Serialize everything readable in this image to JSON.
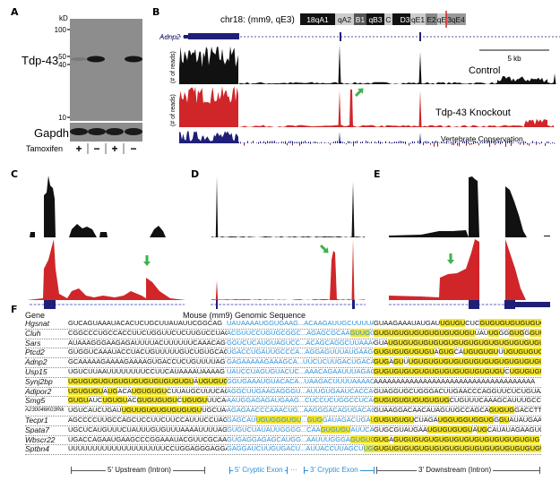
{
  "panels": {
    "a": "A",
    "b": "B",
    "c": "C",
    "d": "D",
    "e": "E",
    "f": "F"
  },
  "panel_a": {
    "unit": "kD",
    "markers": [
      "100",
      "50",
      "40",
      "10"
    ],
    "protein": "Tdp-43",
    "loading_control": "Gapdh",
    "treatment": "Tamoxifen",
    "lanes": [
      "+",
      "−",
      "+",
      "−"
    ]
  },
  "panel_b": {
    "location": "chr18: (mm9, qE3)",
    "ideogram_bands": [
      "18qA1",
      "qA2",
      "B1",
      "qB3",
      "C",
      "D3",
      "qE1",
      "E2",
      "qE",
      "3qE4"
    ],
    "gene": "Adnp2",
    "scale_bar": "5 kb",
    "y_label": "(# of reads)",
    "tracks": [
      "Control",
      "Tdp-43 Knockout",
      "Vertebrate Conservation"
    ]
  },
  "colors": {
    "control": "#111111",
    "knockout": "#d0262a",
    "gene": "#1f1f78",
    "arrow": "#3cb44a",
    "highlight": "#f2e531",
    "exon_text": "#2b8fd6"
  },
  "panel_f": {
    "gene_header": "Gene",
    "sequence_header": "Mouse (mm9) Genomic Sequence",
    "regions": [
      "5' Upstream (Intron)",
      "5' Cryptic Exon",
      "···",
      "3' Cryptic Exon",
      "3' Downstream (Intron)"
    ],
    "rows": [
      {
        "gene": "Hgsnat",
        "up": [
          [
            "GUCAGUAAAUACACUCUGCUUAUAUUCGGCAG",
            0
          ]
        ],
        "ex": [
          [
            "UAUAAAAUGGUGAAG...ACAAGAUUGCUUUUA",
            0
          ]
        ],
        "dn": [
          [
            "GUAAGAAAUAUGAU",
            0
          ],
          [
            "UGUGU",
            1
          ],
          [
            "CUC",
            0
          ],
          [
            "GUGUGUGUGUGUG",
            1
          ]
        ]
      },
      {
        "gene": "Cluh",
        "up": [
          [
            "CGGCCCUGCCACCUUCUGGUUCUCUUGUCCUAG",
            0
          ]
        ],
        "ex": [
          [
            "ACGUUCCUGUGCGGC...AGAGCGCAA",
            0
          ],
          [
            "GUUG",
            1
          ],
          [
            "GG",
            0
          ]
        ],
        "dn": [
          [
            "GUGUGUGUGUGUGUGUGUGU",
            1
          ],
          [
            "UAU",
            0
          ],
          [
            "UG",
            1
          ],
          [
            "GG",
            0
          ],
          [
            "GUG",
            1
          ],
          [
            "G",
            0
          ],
          [
            "GUUG",
            1
          ],
          [
            "UC",
            0
          ]
        ]
      },
      {
        "gene": "Sars",
        "up": [
          [
            "AUAAAGGGAAGAGAUUUUACUUUUUUCAAACAG",
            0
          ]
        ],
        "ex": [
          [
            "GGUCUCAUGUAGUCC...ACAGCAGGCUUAAAGG",
            0
          ]
        ],
        "dn": [
          [
            "GUA",
            0
          ],
          [
            "UGUGUGUGUGUGUGUGUGUGUGUGUGUGUGU",
            1
          ],
          [
            "U",
            0
          ]
        ]
      },
      {
        "gene": "Ptcd2",
        "up": [
          [
            "GUGGUCAAAUACCUACUGUUUUUGUCUGUGCAG",
            0
          ]
        ],
        "ex": [
          [
            "UGACCUGAUUGCCCA...AGGAGUUUAUGAAGG",
            0
          ]
        ],
        "dn": [
          [
            "GUGUGUGUGUGU",
            1
          ],
          [
            "A",
            0
          ],
          [
            "GUG",
            1
          ],
          [
            "CA",
            0
          ],
          [
            "UGUGUGU",
            1
          ],
          [
            "U",
            0
          ],
          [
            "UGUGUGUGUG",
            1
          ]
        ]
      },
      {
        "gene": "Adnp2",
        "up": [
          [
            "GCAAAAAGAAAAGAAAAGUGACCUCUGUUUUAG",
            0
          ]
        ],
        "ex": [
          [
            "GAGAAAAAGAAAGCA...UUCUCUUGACUGACA",
            0
          ]
        ],
        "dn": [
          [
            "GUG",
            1
          ],
          [
            "A",
            0
          ],
          [
            "GU",
            1
          ],
          [
            "U",
            0
          ],
          [
            "UGUGUGUGUGUGUGUGUGUGUGUGUGUGUG",
            1
          ]
        ]
      },
      {
        "gene": "Usp15",
        "up": [
          [
            "UGUCUUAAUUUUUUUUCCUUCAUAAAAUAAAAG",
            0
          ]
        ],
        "ex": [
          [
            "UAUCCUAGUGUACUC...AAACAGAAUUUAGAG",
            0
          ]
        ],
        "dn": [
          [
            "GUGUGUGUGUGUGUGUGUGUGUGUGU",
            1
          ],
          [
            "C",
            0
          ],
          [
            "UGUGUGUUGU",
            1
          ]
        ]
      },
      {
        "gene": "Synj2bp",
        "up": [
          [
            "UGUGUGUGUGUGUGUGUGUGUGUGU",
            1
          ],
          [
            "A",
            0
          ],
          [
            "UGUGUGUGU",
            1
          ],
          [
            "AG",
            0
          ]
        ],
        "ex": [
          [
            "GGUGAAAUGUACACA...UAAGACUUUUAAAAC",
            0
          ]
        ],
        "dn": [
          [
            "AAAAAAAAAAAAAAAAAAAAAAAAAAAAAAAAAAAA",
            0
          ]
        ]
      },
      {
        "gene": "Adipor2",
        "up": [
          [
            "UGUGUGU",
            1
          ],
          [
            "A",
            0
          ],
          [
            "UG",
            1
          ],
          [
            "ACA",
            0
          ],
          [
            "UGUGUGU",
            1
          ],
          [
            "CUUAUGCUUUCAG",
            0
          ]
        ],
        "ex": [
          [
            "AGGCUUGAAGAGGGU...AUUGUGAAUCACCAU",
            0
          ]
        ],
        "dn": [
          [
            "GUAGGUGCUGGGACUUGAACCCAGGUUCUCUGUAA",
            0
          ]
        ]
      },
      {
        "gene": "Smg5",
        "up": [
          [
            "GUGU",
            1
          ],
          [
            "AUC",
            0
          ],
          [
            "UGUGU",
            1
          ],
          [
            "AC",
            0
          ],
          [
            "GUGUGUGU",
            1
          ],
          [
            "C",
            0
          ],
          [
            "UGUGU",
            1
          ],
          [
            "UUCAG",
            0
          ]
        ],
        "ex": [
          [
            "AAUGGAGAGAUGAAG...CUCCUCUGGCCUCAG",
            0
          ]
        ],
        "dn": [
          [
            "GUGUGUGUGUGUGUG",
            1
          ],
          [
            "CUGUUUCAAAGCAUUUGCCC",
            0
          ]
        ]
      },
      {
        "gene": "A230046K03Rik",
        "up": [
          [
            "UGUCAUCUGAU",
            0
          ],
          [
            "UGUUGUGUGUGUGUGU",
            1
          ],
          [
            "UGCUAG",
            0
          ]
        ],
        "ex": [
          [
            "AGAGAACCCAAACUG...AAGGGACAGUGACAG",
            0
          ]
        ],
        "dn": [
          [
            "GUAAGGACAACAUAGUUGCCAGCA",
            0
          ],
          [
            "GUGUG",
            1
          ],
          [
            "GACCTT",
            0
          ]
        ]
      },
      {
        "gene": "Tecpr1",
        "up": [
          [
            "AGCCCCUUGCCAGCUCCUUCUUCCAUUUCCUAG",
            0
          ]
        ],
        "ex": [
          [
            "GAGCAU",
            0
          ],
          [
            "UGUGGGUGU",
            1
          ],
          [
            "...",
            0
          ],
          [
            "GUG",
            1
          ],
          [
            "GAUAGACUGA",
            0
          ],
          [
            "UG",
            1
          ]
        ],
        "dn": [
          [
            "GUGUGUGU",
            1
          ],
          [
            "CUAGA",
            0
          ],
          [
            "UGGUGGUGGUG",
            1
          ],
          [
            "G",
            0
          ],
          [
            "GU",
            1
          ],
          [
            "AUAUGAAU",
            0
          ]
        ]
      },
      {
        "gene": "Spata7",
        "up": [
          [
            "UGCUCAUGUUUCUAUUUGUGUUUAAAAUUUUAG",
            0
          ]
        ],
        "ex": [
          [
            "GUGUCUAUAUUGGGG...CAA",
            0
          ],
          [
            "GUGUGU",
            1
          ],
          [
            "AUUCAG",
            0
          ]
        ],
        "dn": [
          [
            "GUGCGUAUGAA",
            0
          ],
          [
            "UGUGUGUGU",
            1
          ],
          [
            "A",
            0
          ],
          [
            "UG",
            1
          ],
          [
            "CAUAUAGAAGUC",
            0
          ]
        ]
      },
      {
        "gene": "Wbscr22",
        "up": [
          [
            "UGACCAGAAUGAAGCCCGGAAAUACGUUCGCAA",
            0
          ]
        ],
        "ex": [
          [
            "GUGAGGAGAGCAUGG...AAUUUGGGA",
            0
          ],
          [
            "GUGUGU",
            1
          ]
        ],
        "dn": [
          [
            "GUG",
            1
          ],
          [
            "A",
            0
          ],
          [
            "GUGUGUGUGUGUGUGUGUGUGUGUGUGUG",
            1
          ]
        ]
      },
      {
        "gene": "Sptbn4",
        "up": [
          [
            "UUUUUUUUUUUUUUUUUUUUCCUGGAGGGAGGAG",
            0
          ]
        ],
        "ex": [
          [
            "GAGGAUCUUGUGACU...AUUACCUUAGCU",
            0
          ],
          [
            "UGG",
            1
          ]
        ],
        "dn": [
          [
            "GUGUGUGUGUGUGUGUGUGUGUGUGUGUGUGUGUGUG",
            1
          ],
          [
            "CU",
            0
          ]
        ]
      }
    ]
  }
}
